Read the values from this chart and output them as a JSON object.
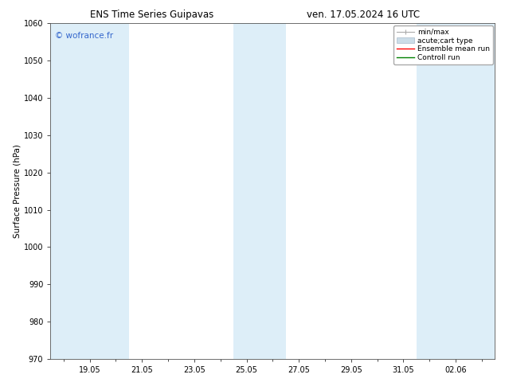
{
  "title_left": "ENS Time Series Guipavas",
  "title_right": "ven. 17.05.2024 16 UTC",
  "ylabel": "Surface Pressure (hPa)",
  "ylim": [
    970,
    1060
  ],
  "yticks": [
    970,
    980,
    990,
    1000,
    1010,
    1020,
    1030,
    1040,
    1050,
    1060
  ],
  "xtick_labels": [
    "19.05",
    "21.05",
    "23.05",
    "25.05",
    "27.05",
    "29.05",
    "31.05",
    "02.06"
  ],
  "xtick_positions": [
    2,
    4,
    6,
    8,
    10,
    12,
    14,
    16
  ],
  "xlim": [
    0.5,
    17.5
  ],
  "shaded_bands": [
    {
      "xmin": 0.5,
      "xmax": 2.5,
      "color": "#ddeef8"
    },
    {
      "xmin": 2.5,
      "xmax": 3.5,
      "color": "#ddeef8"
    },
    {
      "xmin": 7.5,
      "xmax": 9.5,
      "color": "#ddeef8"
    },
    {
      "xmin": 14.5,
      "xmax": 17.5,
      "color": "#ddeef8"
    }
  ],
  "watermark_text": "© wofrance.fr",
  "watermark_color": "#3366cc",
  "legend_entries": [
    {
      "label": "min/max",
      "color": "#aaaaaa",
      "type": "errorbar"
    },
    {
      "label": "acute;cart type",
      "color": "#ccdde8",
      "type": "fill"
    },
    {
      "label": "Ensemble mean run",
      "color": "#ff0000",
      "type": "line"
    },
    {
      "label": "Controll run",
      "color": "#008000",
      "type": "line"
    }
  ],
  "bg_color": "#ffffff",
  "plot_bg_color": "#ffffff",
  "grid_color": "#cccccc",
  "title_fontsize": 8.5,
  "ylabel_fontsize": 7.5,
  "tick_fontsize": 7,
  "watermark_fontsize": 7.5,
  "legend_fontsize": 6.5
}
